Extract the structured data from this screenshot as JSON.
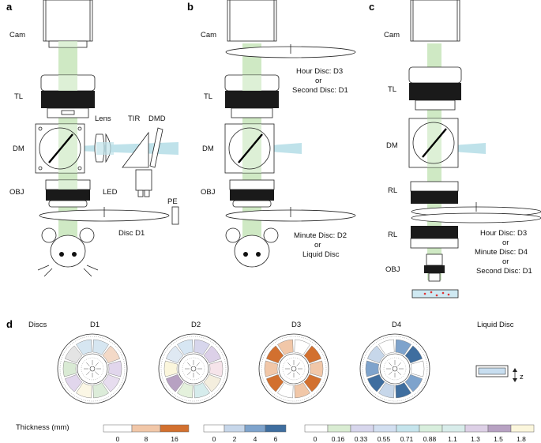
{
  "panels": {
    "a": {
      "label": "a",
      "cam": "Cam",
      "tl": "TL",
      "dm": "DM",
      "obj": "OBJ",
      "lens": "Lens",
      "tir": "TIR",
      "dmd": "DMD",
      "led": "LED",
      "pe": "PE",
      "disc": "Disc D1"
    },
    "b": {
      "label": "b",
      "cam": "Cam",
      "tl": "TL",
      "dm": "DM",
      "obj": "OBJ",
      "disc_top": [
        "Hour Disc:  D3",
        "or",
        "Second Disc: D1"
      ],
      "disc_bottom": [
        "Minute Disc: D2",
        "or",
        "Liquid Disc"
      ]
    },
    "c": {
      "label": "c",
      "cam": "Cam",
      "tl": "TL",
      "dm": "DM",
      "rl1": "RL",
      "rl2": "RL",
      "obj": "OBJ",
      "disc": [
        "Hour Disc: D3",
        "or",
        "Minute Disc: D4",
        "or",
        "Second Disc: D1"
      ]
    },
    "d": {
      "label": "d",
      "discs_label": "Discs",
      "titles": [
        "D1",
        "D2",
        "D3",
        "D4",
        "Liquid Disc"
      ],
      "z_label": "z",
      "thickness_label": "Thickness (mm)",
      "scale1_ticks": [
        "0",
        "8",
        "16"
      ],
      "scale2_ticks": [
        "0",
        "2",
        "4",
        "6"
      ],
      "scale3_ticks": [
        "0",
        "0.16",
        "0.33",
        "0.55",
        "0.71",
        "0.88",
        "1.1",
        "1.3",
        "1.5",
        "1.8"
      ]
    }
  },
  "colors": {
    "beam_green": "#cfe9c4",
    "beam_blue": "#bfe2ea",
    "scale_orange": [
      "#ffffff",
      "#f1c7a8",
      "#d2702f"
    ],
    "scale_blue": [
      "#ffffff",
      "#c7d7ea",
      "#7ea3cc",
      "#3f6e9f"
    ],
    "scale_multi": [
      "#ffffff",
      "#d9ecd2",
      "#d7d6ec",
      "#d2dff0",
      "#c5e4ec",
      "#d8eedd",
      "#d8ecea",
      "#ddd0e6",
      "#b7a1c2",
      "#fbf6dc"
    ]
  },
  "disc_segments": {
    "D1": [
      "#d6e6f1",
      "#f3d9c7",
      "#e1d6ec",
      "#e7ddef",
      "#dcecd9",
      "#fbf7e5",
      "#e1d6ec",
      "#d9ead4",
      "#e4e4e4",
      "#d6e6f1"
    ],
    "D2": [
      "#d7d6ec",
      "#dcd0e8",
      "#f6e4ea",
      "#f4eede",
      "#d6ecec",
      "#e4f1dc",
      "#b7a1c2",
      "#fbf6dc",
      "#dfe9f3",
      "#d7e6f3"
    ],
    "D3": [
      "#ffffff",
      "#d2702f",
      "#f1c7a8",
      "#d2702f",
      "#f1c7a8",
      "#ffffff",
      "#d2702f",
      "#f1c7a8",
      "#d2702f",
      "#f1c7a8"
    ],
    "D4": [
      "#7ea3cc",
      "#3f6e9f",
      "#ffffff",
      "#7ea3cc",
      "#3f6e9f",
      "#c7d7ea",
      "#3f6e9f",
      "#7ea3cc",
      "#c7d7ea",
      "#ffffff"
    ]
  }
}
